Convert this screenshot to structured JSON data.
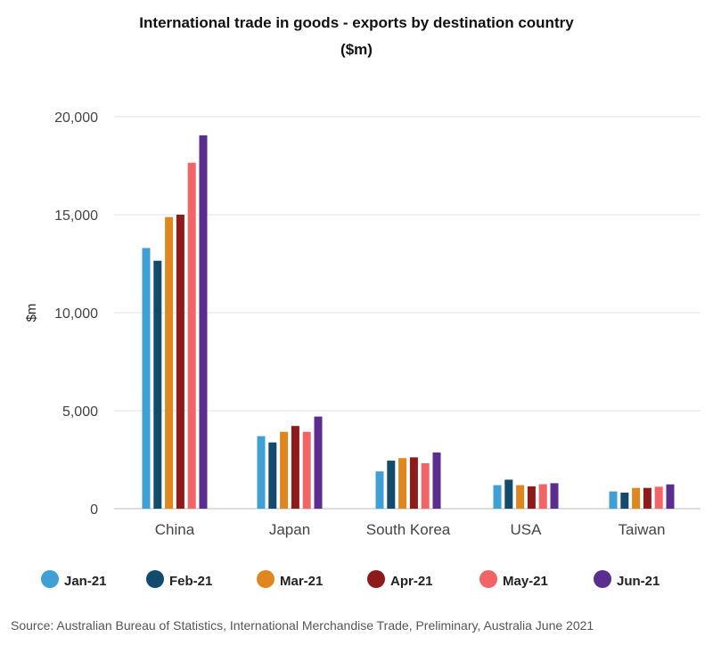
{
  "chart_data": {
    "type": "bar",
    "title": "International trade in goods - exports by destination country",
    "subtitle": "($m)",
    "ylabel": "$m",
    "xlabel": "",
    "ylim": [
      0,
      20000
    ],
    "yticks": [
      0,
      5000,
      10000,
      15000,
      20000
    ],
    "ytick_labels": [
      "0",
      "5,000",
      "10,000",
      "15,000",
      "20,000"
    ],
    "grid": true,
    "legend_position": "bottom",
    "categories": [
      "China",
      "Japan",
      "South Korea",
      "USA",
      "Taiwan"
    ],
    "series": [
      {
        "name": "Jan-21",
        "color": "#3fa0d5",
        "values": [
          13300,
          3700,
          1900,
          1200,
          880
        ]
      },
      {
        "name": "Feb-21",
        "color": "#124b6e",
        "values": [
          12650,
          3380,
          2450,
          1480,
          820
        ]
      },
      {
        "name": "Mar-21",
        "color": "#e0861f",
        "values": [
          14880,
          3920,
          2580,
          1200,
          1060
        ]
      },
      {
        "name": "Apr-21",
        "color": "#8e1b1b",
        "values": [
          15000,
          4220,
          2620,
          1140,
          1060
        ]
      },
      {
        "name": "May-21",
        "color": "#f26466",
        "values": [
          17650,
          3920,
          2320,
          1250,
          1120
        ]
      },
      {
        "name": "Jun-21",
        "color": "#5b2d8e",
        "values": [
          19050,
          4700,
          2870,
          1300,
          1240
        ]
      }
    ],
    "source": "Source: Australian Bureau of Statistics, International Merchandise Trade, Preliminary, Australia June 2021"
  }
}
